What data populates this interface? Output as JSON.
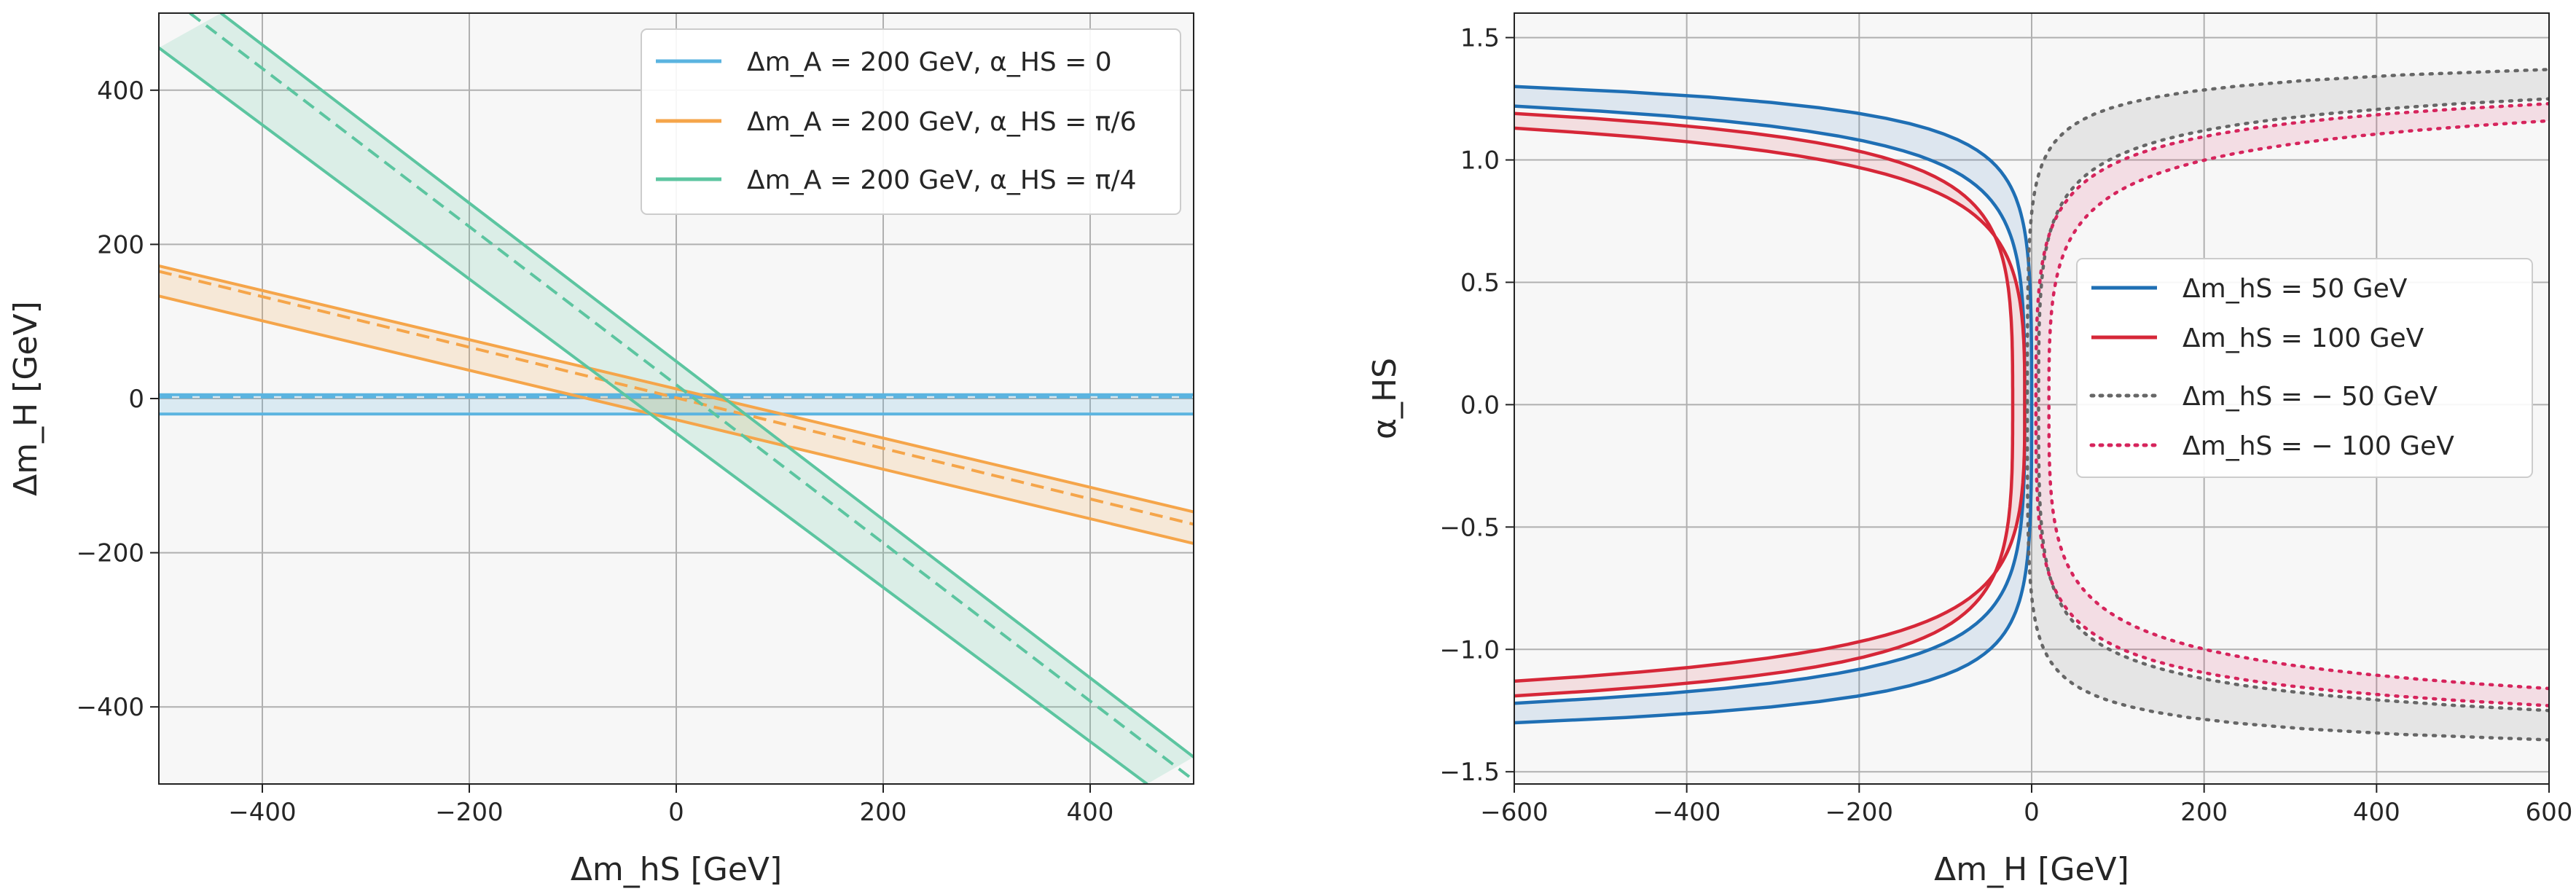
{
  "chart_data": [
    {
      "type": "line",
      "xlabel": "Δm_hS [GeV]",
      "ylabel": "Δm_H [GeV]",
      "xlim": [
        -500,
        500
      ],
      "ylim": [
        -500,
        500
      ],
      "xticks": [
        -400,
        -200,
        0,
        200,
        400
      ],
      "yticks": [
        -400,
        -200,
        0,
        200,
        400
      ],
      "xtick_labels": [
        "−400",
        "−200",
        "0",
        "200",
        "400"
      ],
      "ytick_labels": [
        "−400",
        "−200",
        "0",
        "200",
        "400"
      ],
      "grid": true,
      "legend_position": "top-right",
      "series": [
        {
          "name": "Δm_A = 200 GeV, α_HS = 0",
          "color": "#5bb4e0",
          "central": {
            "x": [
              -500,
              500
            ],
            "y": [
              2,
              2
            ]
          },
          "band": {
            "upper": {
              "x": [
                -500,
                500
              ],
              "y": [
                5,
                5
              ]
            },
            "lower": {
              "x": [
                -500,
                500
              ],
              "y": [
                -20,
                -20
              ]
            }
          }
        },
        {
          "name": "Δm_A = 200 GeV, α_HS = π/6",
          "color": "#f5a54a",
          "central": {
            "x": [
              -500,
              500
            ],
            "y": [
              165,
              -163
            ]
          },
          "band": {
            "upper": {
              "x": [
                -500,
                500
              ],
              "y": [
                172,
                -147
              ]
            },
            "lower": {
              "x": [
                -500,
                500
              ],
              "y": [
                133,
                -188
              ]
            }
          }
        },
        {
          "name": "Δm_A = 200 GeV, α_HS = π/4",
          "color": "#5cc5a0",
          "central": {
            "x": [
              -470,
              500
            ],
            "y": [
              500,
              -495
            ]
          },
          "band": {
            "upper": {
              "x": [
                -440,
                500
              ],
              "y": [
                500,
                -465
              ]
            },
            "lower": {
              "x": [
                -500,
                455
              ],
              "y": [
                455,
                -500
              ]
            }
          }
        }
      ]
    },
    {
      "type": "line",
      "xlabel": "Δm_H [GeV]",
      "ylabel": "α_HS",
      "xlim": [
        -600,
        600
      ],
      "ylim": [
        -1.55,
        1.6
      ],
      "xticks": [
        -600,
        -400,
        -200,
        0,
        200,
        400,
        600
      ],
      "yticks": [
        -1.5,
        -1.0,
        -0.5,
        0.0,
        0.5,
        1.0,
        1.5
      ],
      "xtick_labels": [
        "−600",
        "−400",
        "−200",
        "0",
        "200",
        "400",
        "600"
      ],
      "ytick_labels": [
        "−1.5",
        "−1.0",
        "−0.5",
        "0.0",
        "0.5",
        "1.0",
        "1.5"
      ],
      "grid": true,
      "legend_position": "center-right",
      "series": [
        {
          "name": "Δm_hS = 50 GeV",
          "color": "#1f6fb4",
          "style": "solid",
          "outer_alpha_at_xmin": 1.3,
          "inner_alpha_at_xmin": 1.22
        },
        {
          "name": "Δm_hS = 100 GeV",
          "color": "#d62738",
          "style": "solid",
          "outer_alpha_at_xmin": 1.19,
          "inner_alpha_at_xmin": 1.13
        },
        {
          "name": "Δm_hS = − 50 GeV",
          "color": "#666666",
          "style": "dotted",
          "outer_alpha_at_xmax": 1.37,
          "inner_alpha_at_xmax": 1.25
        },
        {
          "name": "Δm_hS = − 100 GeV",
          "color": "#d6245c",
          "style": "dotted",
          "outer_alpha_at_xmax": 1.23,
          "inner_alpha_at_xmax": 1.16
        }
      ]
    }
  ]
}
